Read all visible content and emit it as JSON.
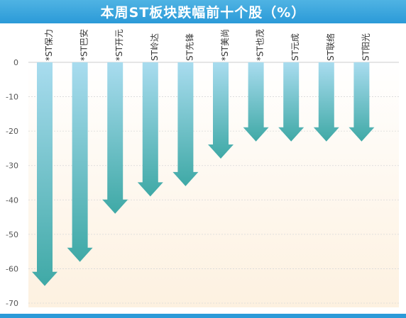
{
  "title": "本周ST板块跌幅前十个股（%）",
  "colors": {
    "title_bg": "#2b9ad8",
    "arrow_top": "#a9dcef",
    "arrow_bottom": "#3fa9a6",
    "bg_top": "#ffffff",
    "bg_bottom": "#fdf1e0",
    "grid": "#d8d8d8"
  },
  "chart_data": {
    "type": "bar",
    "title": "本周ST板块跌幅前十个股（%）",
    "categories": [
      "*ST保力",
      "*ST巴安",
      "*ST开元",
      "ST岭达",
      "ST先锋",
      "*ST美尚",
      "*ST也茂",
      "ST元成",
      "ST联络",
      "ST阳光"
    ],
    "values": [
      -65,
      -58,
      -44,
      -39,
      -36,
      -28,
      -23,
      -23,
      -23,
      -23
    ],
    "yticks": [
      0,
      -10,
      -20,
      -30,
      -40,
      -50,
      -60,
      -70
    ],
    "ylim": [
      -70,
      0
    ],
    "grid": true,
    "xlabel": "",
    "ylabel": ""
  }
}
